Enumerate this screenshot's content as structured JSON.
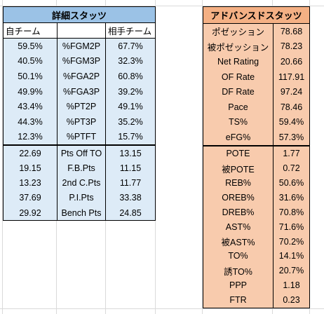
{
  "left": {
    "title": "詳細スタッツ",
    "header": {
      "own": "自チーム",
      "stat": "",
      "opp": "相手チーム"
    },
    "rows_top": [
      {
        "own": "59.5%",
        "stat": "%FGM2P",
        "opp": "67.7%"
      },
      {
        "own": "40.5%",
        "stat": "%FGM3P",
        "opp": "32.3%"
      },
      {
        "own": "50.1%",
        "stat": "%FGA2P",
        "opp": "60.8%"
      },
      {
        "own": "49.9%",
        "stat": "%FGA3P",
        "opp": "39.2%"
      },
      {
        "own": "43.4%",
        "stat": "%PT2P",
        "opp": "49.1%"
      },
      {
        "own": "44.3%",
        "stat": "%PT3P",
        "opp": "35.2%"
      },
      {
        "own": "12.3%",
        "stat": "%PTFT",
        "opp": "15.7%"
      }
    ],
    "rows_bottom": [
      {
        "own": "22.69",
        "stat": "Pts Off TO",
        "opp": "13.15"
      },
      {
        "own": "19.15",
        "stat": "F.B.Pts",
        "opp": "11.15"
      },
      {
        "own": "13.23",
        "stat": "2nd C.Pts",
        "opp": "11.77"
      },
      {
        "own": "37.69",
        "stat": "P.I.Pts",
        "opp": "33.38"
      },
      {
        "own": "29.92",
        "stat": "Bench Pts",
        "opp": "24.85"
      }
    ]
  },
  "right": {
    "title": "アドバンスドスタッツ",
    "rows_top": [
      {
        "label": "ポゼッション",
        "value": "78.68"
      },
      {
        "label": "被ポゼッション",
        "value": "78.23"
      },
      {
        "label": "Net Rating",
        "value": "20.66"
      },
      {
        "label": "OF Rate",
        "value": "117.91"
      },
      {
        "label": "DF Rate",
        "value": "97.24"
      },
      {
        "label": "Pace",
        "value": "78.46"
      },
      {
        "label": "TS%",
        "value": "59.4%"
      },
      {
        "label": "eFG%",
        "value": "57.3%"
      }
    ],
    "rows_bottom": [
      {
        "label": "POTE",
        "value": "1.77"
      },
      {
        "label": "被POTE",
        "value": "0.72"
      },
      {
        "label": "REB%",
        "value": "50.6%"
      },
      {
        "label": "OREB%",
        "value": "31.6%"
      },
      {
        "label": "DREB%",
        "value": "70.8%"
      },
      {
        "label": "AST%",
        "value": "71.6%"
      },
      {
        "label": "被AST%",
        "value": "70.2%"
      },
      {
        "label": "TO%",
        "value": "14.1%"
      },
      {
        "label": "誘TO%",
        "value": "20.7%"
      },
      {
        "label": "PPP",
        "value": "1.18"
      },
      {
        "label": "FTR",
        "value": "0.23"
      }
    ]
  },
  "colors": {
    "left_title_bg": "#9bc2e6",
    "left_body_bg": "#ddebf7",
    "right_title_bg": "#f4b084",
    "right_body_bg": "#f8cbad"
  }
}
